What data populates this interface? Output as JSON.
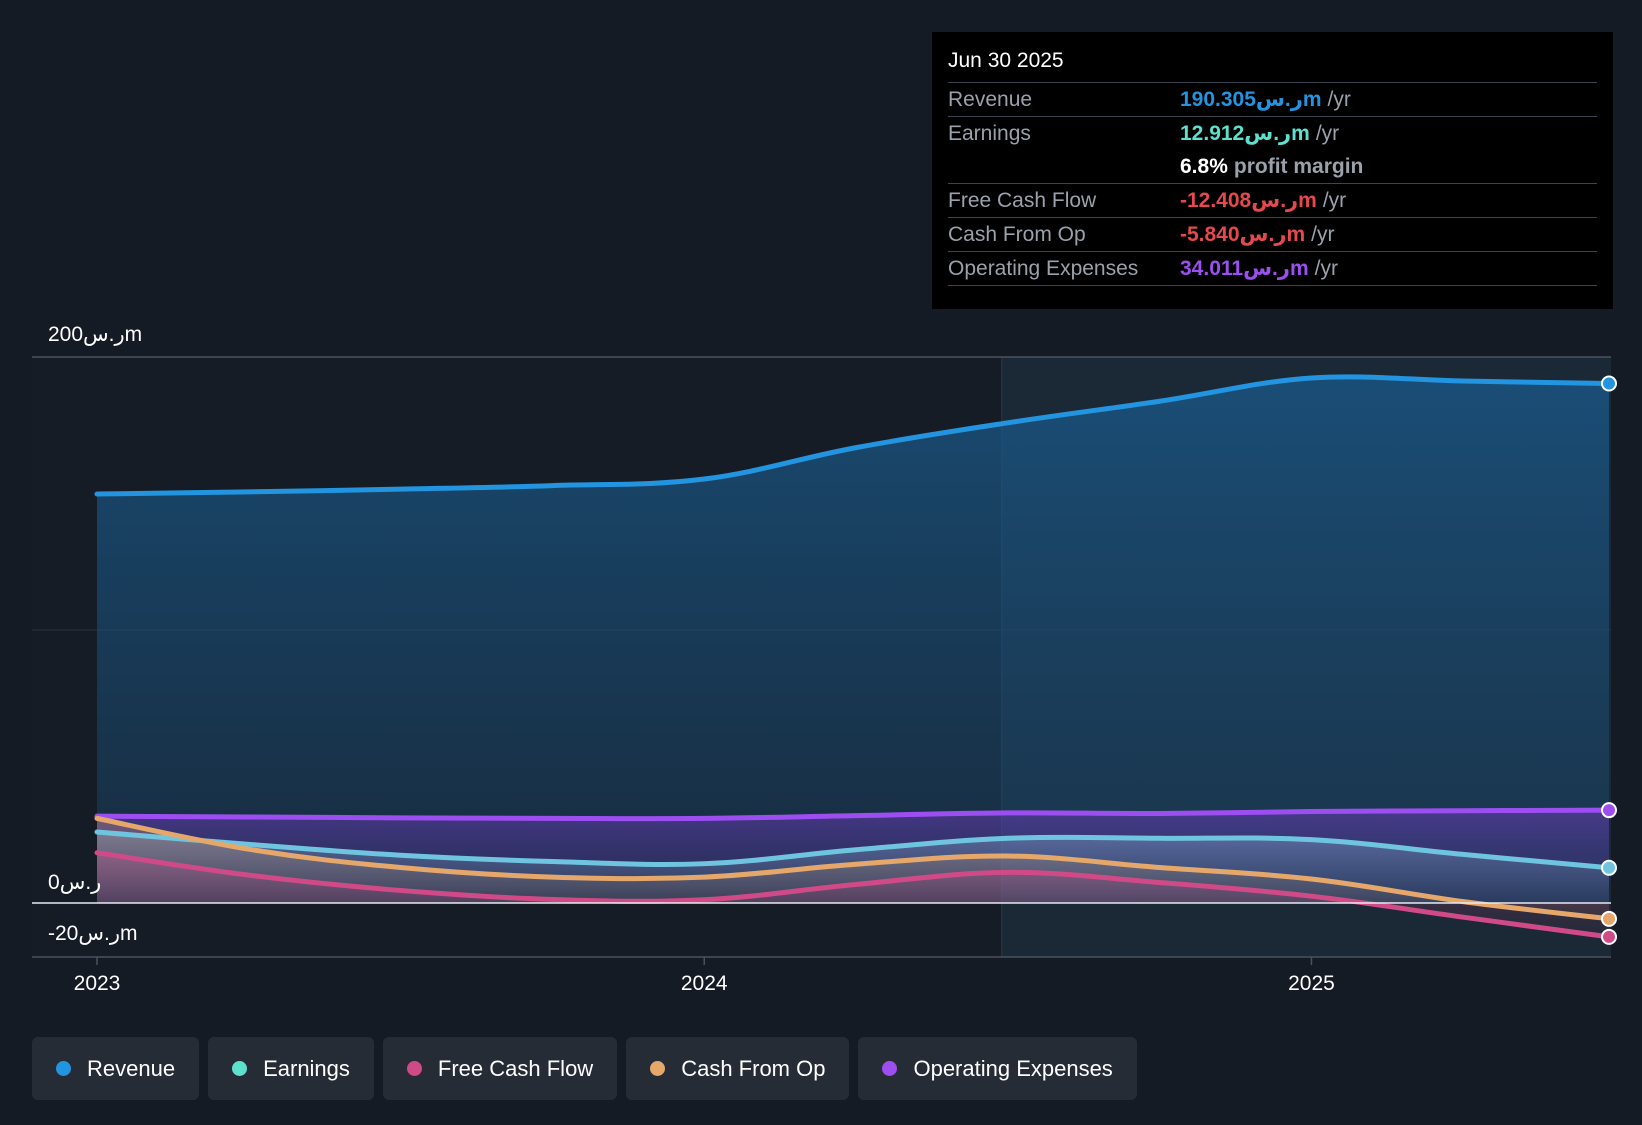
{
  "chart_data": {
    "type": "area",
    "y_unit": "ر.سm",
    "ylim": [
      -20,
      200
    ],
    "y_ticks": [
      {
        "value": 200,
        "label": "200ر.سm"
      },
      {
        "value": 0,
        "label": "0ر.س"
      },
      {
        "value": -20,
        "label": "-20ر.سm"
      }
    ],
    "x_ticks": [
      {
        "value": 2023.0,
        "label": "2023"
      },
      {
        "value": 2024.0,
        "label": "2024"
      },
      {
        "value": 2025.0,
        "label": "2025"
      }
    ],
    "xlim": [
      2023.0,
      2025.49
    ],
    "highlight_start": 2024.49,
    "series": [
      {
        "name": "Revenue",
        "color": "#2394df",
        "x": [
          2023.0,
          2023.25,
          2023.5,
          2023.75,
          2024.0,
          2024.25,
          2024.5,
          2024.75,
          2025.0,
          2025.25,
          2025.49
        ],
        "values": [
          149.8,
          150.6,
          151.6,
          152.9,
          155.3,
          166.8,
          175.9,
          183.8,
          192.3,
          191.2,
          190.3
        ]
      },
      {
        "name": "Earnings",
        "color": "#6fc5e0",
        "x": [
          2023.0,
          2023.25,
          2023.5,
          2023.75,
          2024.0,
          2024.25,
          2024.5,
          2024.75,
          2025.0,
          2025.25,
          2025.49
        ],
        "values": [
          26.0,
          21.5,
          17.5,
          15.2,
          14.4,
          19.5,
          23.7,
          23.7,
          23.2,
          17.8,
          12.9
        ]
      },
      {
        "name": "Free Cash Flow",
        "color": "#d04a87",
        "x": [
          2023.0,
          2023.25,
          2023.5,
          2023.75,
          2024.0,
          2024.25,
          2024.5,
          2024.75,
          2025.0,
          2025.25,
          2025.49
        ],
        "values": [
          18.4,
          10.2,
          4.6,
          1.3,
          1.2,
          6.8,
          11.2,
          7.5,
          2.5,
          -5.2,
          -12.4
        ]
      },
      {
        "name": "Cash From Op",
        "color": "#e5a86a",
        "x": [
          2023.0,
          2023.25,
          2023.5,
          2023.75,
          2024.0,
          2024.25,
          2024.5,
          2024.75,
          2025.0,
          2025.25,
          2025.49
        ],
        "values": [
          31.0,
          19.7,
          13.0,
          9.5,
          9.5,
          14.2,
          17.2,
          13.0,
          8.8,
          0.5,
          -5.8
        ]
      },
      {
        "name": "Operating Expenses",
        "color": "#9d4ef0",
        "x": [
          2023.0,
          2023.25,
          2023.5,
          2023.75,
          2024.0,
          2024.25,
          2024.5,
          2024.75,
          2025.0,
          2025.25,
          2025.49
        ],
        "values": [
          31.8,
          31.5,
          31.2,
          31.0,
          31.0,
          32.0,
          33.0,
          32.8,
          33.5,
          33.8,
          34.0
        ]
      }
    ]
  },
  "tooltip": {
    "date": "Jun 30 2025",
    "rows": [
      {
        "label": "Revenue",
        "value": "190.305ر.سm",
        "unit": "/yr",
        "color": "#2394df"
      },
      {
        "label": "Earnings",
        "value": "12.912ر.سm",
        "unit": "/yr",
        "color": "#5fe0cc"
      },
      {
        "label": "",
        "value": "6.8%",
        "unit": "profit margin",
        "color": "#ffffff"
      },
      {
        "label": "Free Cash Flow",
        "value": "-12.408ر.سm",
        "unit": "/yr",
        "color": "#e5484d"
      },
      {
        "label": "Cash From Op",
        "value": "-5.840ر.سm",
        "unit": "/yr",
        "color": "#e5484d"
      },
      {
        "label": "Operating Expenses",
        "value": "34.011ر.سm",
        "unit": "/yr",
        "color": "#9d4ef0"
      }
    ]
  },
  "legend": [
    {
      "label": "Revenue",
      "color": "#2394df"
    },
    {
      "label": "Earnings",
      "color": "#5fe0cc"
    },
    {
      "label": "Free Cash Flow",
      "color": "#d04a87"
    },
    {
      "label": "Cash From Op",
      "color": "#e5a86a"
    },
    {
      "label": "Operating Expenses",
      "color": "#9d4ef0"
    }
  ]
}
